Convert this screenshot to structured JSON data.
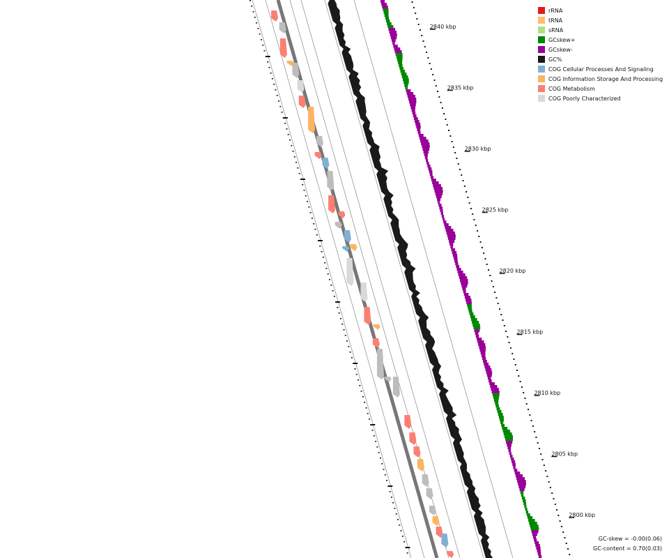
{
  "legend": [
    {
      "label": "rRNA",
      "color": "#e31a1c",
      "icon": "square"
    },
    {
      "label": "tRNA",
      "color": "#fdbf6f",
      "icon": "square"
    },
    {
      "label": "sRNA",
      "color": "#b2df8a",
      "icon": "square"
    },
    {
      "label": "GCskew+",
      "color": "#008800",
      "icon": "square"
    },
    {
      "label": "GCskew-",
      "color": "#990099",
      "icon": "square"
    },
    {
      "label": "GC%",
      "color": "#1a1a1a",
      "icon": "square"
    },
    {
      "label": "COG Cellular Processes And Signaling",
      "color": "#80b1d3",
      "icon": "square"
    },
    {
      "label": "COG Information Storage And Processing",
      "color": "#fdb462",
      "icon": "square"
    },
    {
      "label": "COG Metabolism",
      "color": "#fb8072",
      "icon": "square"
    },
    {
      "label": "COG Poorly Characterized",
      "color": "#d9d9d9",
      "icon": "square"
    }
  ],
  "scale_labels": [
    "2840 kbp",
    "2835 kbp",
    "2830 kbp",
    "2825 kbp",
    "2820 kbp",
    "2815 kbp",
    "2810 kbp",
    "2805 kbp",
    "2800 kbp"
  ],
  "stats": {
    "gc_skew": "GC-skew = -0.00(0.06)",
    "gc_content": "GC-content = 0.70(0.03)"
  },
  "colors": {
    "backbone": "#777777",
    "track_line": "#888888",
    "gc_content": "#1a1a1a",
    "skew_positive": "#008800",
    "skew_negative": "#990099",
    "cog_metabolism": "#fb8072",
    "cog_info": "#fdb462",
    "cog_cellular": "#80b1d3",
    "cog_poor": "#d9d9d9",
    "cog_gray": "#bdbdbd"
  }
}
